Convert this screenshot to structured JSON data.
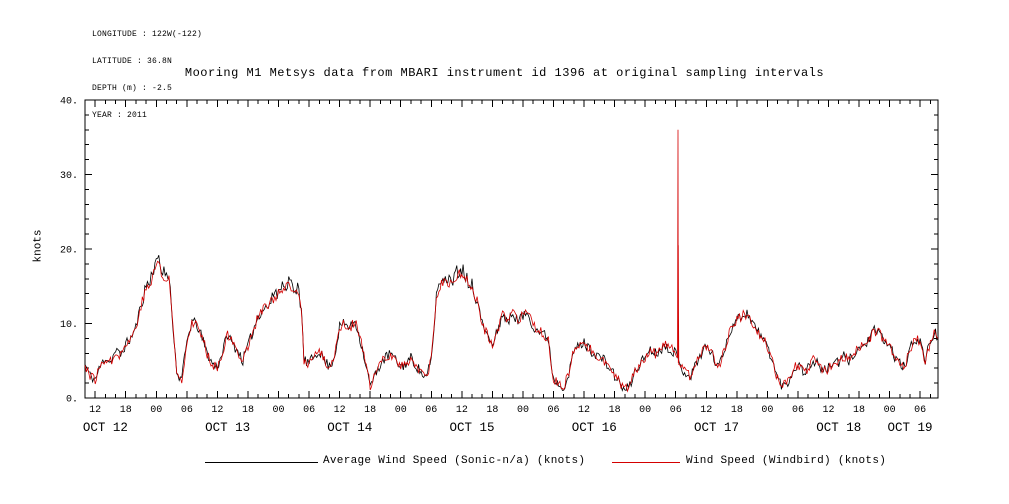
{
  "metadata": {
    "longitude": "LONGITUDE : 122W(-122)",
    "latitude": "LATITUDE : 36.8N",
    "depth": "DEPTH (m) : -2.5",
    "year": "YEAR : 2011"
  },
  "chart_data": {
    "type": "line",
    "title": "Mooring M1 Metsys data from MBARI instrument id 1396 at original sampling intervals",
    "xlabel": "",
    "ylabel": "knots",
    "grid": false,
    "legend_position": "bottom",
    "ylim": [
      0,
      40
    ],
    "xlim": [
      10,
      177.5
    ],
    "x_unit": "hours since OCT 12 2011 00:00",
    "noise_amplitude": 0.7,
    "y_axis": {
      "major_ticks": [
        0,
        10,
        20,
        30,
        40
      ],
      "tick_labels": [
        "0.",
        "10.",
        "20.",
        "30.",
        "40."
      ],
      "minor_step": 2
    },
    "x_axis": {
      "tick_times": [
        12,
        18,
        24,
        30,
        36,
        42,
        48,
        54,
        60,
        66,
        72,
        78,
        84,
        90,
        96,
        102,
        108,
        114,
        120,
        126,
        132,
        138,
        144,
        150,
        156,
        162,
        168,
        174
      ],
      "tick_labels": [
        "12",
        "18",
        "00",
        "06",
        "12",
        "18",
        "00",
        "06",
        "12",
        "18",
        "00",
        "06",
        "12",
        "18",
        "00",
        "06",
        "12",
        "18",
        "00",
        "06",
        "12",
        "18",
        "00",
        "06",
        "12",
        "18",
        "00",
        "06"
      ],
      "minor_step": 2,
      "day_labels": [
        {
          "label": "OCT 12",
          "t": 14
        },
        {
          "label": "OCT 13",
          "t": 38
        },
        {
          "label": "OCT 14",
          "t": 62
        },
        {
          "label": "OCT 15",
          "t": 86
        },
        {
          "label": "OCT 16",
          "t": 110
        },
        {
          "label": "OCT 17",
          "t": 134
        },
        {
          "label": "OCT 18",
          "t": 158
        },
        {
          "label": "OCT 19",
          "t": 172
        }
      ]
    },
    "keypoints": [
      [
        10,
        4.5
      ],
      [
        11,
        3
      ],
      [
        12,
        2.5
      ],
      [
        13,
        4.2
      ],
      [
        14,
        5.5
      ],
      [
        15,
        4.8
      ],
      [
        16,
        6.3
      ],
      [
        17,
        5.8
      ],
      [
        18,
        7.2
      ],
      [
        19,
        8
      ],
      [
        20,
        9.5
      ],
      [
        21,
        12.5
      ],
      [
        22,
        14.5
      ],
      [
        23,
        15.5
      ],
      [
        24,
        18
      ],
      [
        24.5,
        18.5
      ],
      [
        25,
        16.5
      ],
      [
        26,
        15.5
      ],
      [
        26.5,
        16
      ],
      [
        27,
        12
      ],
      [
        27.5,
        8
      ],
      [
        28,
        3.2
      ],
      [
        29,
        2.6
      ],
      [
        30,
        7.5
      ],
      [
        31,
        10.3
      ],
      [
        32,
        9.8
      ],
      [
        33,
        8
      ],
      [
        34,
        6
      ],
      [
        35,
        4.6
      ],
      [
        36,
        4.2
      ],
      [
        37,
        6.2
      ],
      [
        38,
        8.6
      ],
      [
        39,
        7.2
      ],
      [
        40,
        6.4
      ],
      [
        41,
        5
      ],
      [
        42,
        7
      ],
      [
        43,
        9
      ],
      [
        44,
        11
      ],
      [
        45,
        12
      ],
      [
        46,
        12.3
      ],
      [
        47,
        13.4
      ],
      [
        48,
        14
      ],
      [
        49,
        14.4
      ],
      [
        50,
        15
      ],
      [
        51,
        14.3
      ],
      [
        52,
        13.6
      ],
      [
        52.5,
        12
      ],
      [
        53,
        5
      ],
      [
        54,
        4.6
      ],
      [
        55,
        5.6
      ],
      [
        56,
        6.4
      ],
      [
        57,
        5
      ],
      [
        58,
        4.2
      ],
      [
        59,
        5.6
      ],
      [
        60,
        9.6
      ],
      [
        61,
        10
      ],
      [
        62,
        9.4
      ],
      [
        63,
        10.4
      ],
      [
        64,
        8
      ],
      [
        65,
        5
      ],
      [
        66,
        1.6
      ],
      [
        67,
        3
      ],
      [
        68,
        4.6
      ],
      [
        69,
        5.4
      ],
      [
        70,
        6
      ],
      [
        71,
        5
      ],
      [
        72,
        4.2
      ],
      [
        73,
        4.6
      ],
      [
        74,
        5.4
      ],
      [
        75,
        4.4
      ],
      [
        76,
        3.4
      ],
      [
        77,
        2.6
      ],
      [
        78,
        5
      ],
      [
        78.5,
        9
      ],
      [
        79,
        13.5
      ],
      [
        80,
        15.4
      ],
      [
        81,
        15.8
      ],
      [
        82,
        15
      ],
      [
        83,
        16.4
      ],
      [
        84,
        16.8
      ],
      [
        85,
        15.8
      ],
      [
        86,
        14.4
      ],
      [
        87,
        13
      ],
      [
        88,
        10
      ],
      [
        89,
        8.4
      ],
      [
        90,
        7
      ],
      [
        91,
        9
      ],
      [
        92,
        11.4
      ],
      [
        93,
        10
      ],
      [
        94,
        11.4
      ],
      [
        95,
        10.4
      ],
      [
        96,
        11
      ],
      [
        97,
        11.4
      ],
      [
        98,
        9.6
      ],
      [
        99,
        9
      ],
      [
        100,
        8.6
      ],
      [
        101,
        8
      ],
      [
        101.5,
        5
      ],
      [
        102,
        2.6
      ],
      [
        103,
        2
      ],
      [
        104,
        1.6
      ],
      [
        105,
        3
      ],
      [
        106,
        6.4
      ],
      [
        107,
        7
      ],
      [
        108,
        7.4
      ],
      [
        109,
        6.6
      ],
      [
        110,
        6
      ],
      [
        111,
        5.6
      ],
      [
        112,
        5
      ],
      [
        113,
        4
      ],
      [
        114,
        3
      ],
      [
        115,
        2
      ],
      [
        116,
        1
      ],
      [
        117,
        1.6
      ],
      [
        118,
        3.6
      ],
      [
        119,
        4.6
      ],
      [
        120,
        5.6
      ],
      [
        121,
        6.6
      ],
      [
        122,
        6
      ],
      [
        123,
        6.6
      ],
      [
        124,
        7
      ],
      [
        125,
        6.6
      ],
      [
        126,
        6
      ],
      [
        127,
        4
      ],
      [
        128,
        3.4
      ],
      [
        129,
        3
      ],
      [
        130,
        4.6
      ],
      [
        131,
        6
      ],
      [
        132,
        7
      ],
      [
        133,
        6
      ],
      [
        134,
        4.6
      ],
      [
        135,
        5
      ],
      [
        136,
        7.6
      ],
      [
        137,
        9.6
      ],
      [
        138,
        10.6
      ],
      [
        139,
        11
      ],
      [
        140,
        11.4
      ],
      [
        141,
        10.4
      ],
      [
        142,
        9
      ],
      [
        143,
        8
      ],
      [
        144,
        7
      ],
      [
        145,
        5
      ],
      [
        146,
        2.6
      ],
      [
        147,
        1.6
      ],
      [
        148,
        2
      ],
      [
        149,
        3.6
      ],
      [
        150,
        4.6
      ],
      [
        151,
        3.6
      ],
      [
        152,
        4
      ],
      [
        153,
        5
      ],
      [
        154,
        4.6
      ],
      [
        155,
        3.6
      ],
      [
        156,
        4
      ],
      [
        157,
        5
      ],
      [
        158,
        4.6
      ],
      [
        159,
        5.6
      ],
      [
        160,
        5
      ],
      [
        161,
        6
      ],
      [
        162,
        6.6
      ],
      [
        163,
        7
      ],
      [
        164,
        8
      ],
      [
        165,
        9
      ],
      [
        166,
        8.6
      ],
      [
        167,
        7.6
      ],
      [
        168,
        7
      ],
      [
        169,
        5.6
      ],
      [
        170,
        4.6
      ],
      [
        171,
        4
      ],
      [
        172,
        6.6
      ],
      [
        173,
        8
      ],
      [
        174,
        7.6
      ],
      [
        175,
        5
      ],
      [
        176,
        7.6
      ],
      [
        177,
        9
      ],
      [
        177.5,
        8
      ]
    ],
    "series": [
      {
        "name": "Average Wind Speed (Sonic-n/a) (knots)",
        "color": "#000000",
        "uses_keypoints": true
      },
      {
        "name": "Wind Speed (Windbird) (knots)",
        "color": "#d40000",
        "uses_keypoints": true,
        "spike_points": [
          [
            126.35,
            5.5
          ],
          [
            126.45,
            36
          ],
          [
            126.5,
            20.5
          ],
          [
            126.55,
            12
          ],
          [
            126.6,
            4.5
          ]
        ]
      }
    ]
  }
}
